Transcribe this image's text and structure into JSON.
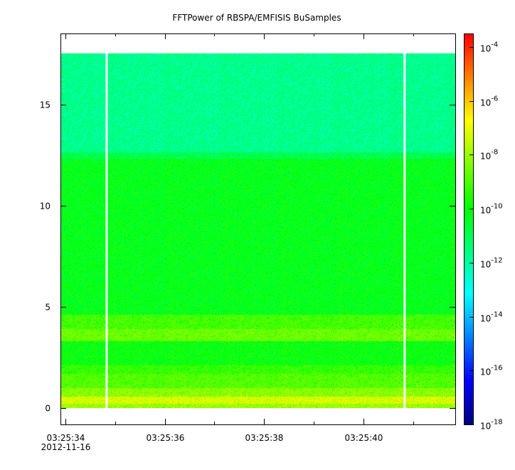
{
  "chart_data": {
    "type": "heatmap",
    "title": "FFTPower of RBSPA/EMFISIS  BuSamples",
    "xlabel": "",
    "ylabel": "",
    "x_range_seconds_after_032534": [
      -0.1,
      7.85
    ],
    "ylim": [
      -0.8,
      18.5
    ],
    "y_ticks": [
      {
        "value": 0,
        "label": "0"
      },
      {
        "value": 5,
        "label": "5"
      },
      {
        "value": 10,
        "label": "10"
      },
      {
        "value": 15,
        "label": "15"
      }
    ],
    "x_ticks": [
      {
        "time": "03:25:34",
        "label": "03:25:34",
        "sub": "2012-11-16"
      },
      {
        "time": "03:25:36",
        "label": "03:25:36"
      },
      {
        "time": "03:25:38",
        "label": "03:25:38"
      },
      {
        "time": "03:25:40",
        "label": "03:25:40"
      }
    ],
    "x_minor_ticks": [
      "03:25:35",
      "03:25:37",
      "03:25:39",
      "03:25:41"
    ],
    "data_extent": {
      "x": [
        "03:25:33.9",
        "03:25:41.85"
      ],
      "y": [
        0,
        17.5
      ]
    },
    "gaps": [
      "03:25:34.83",
      "03:25:40.83"
    ],
    "bands": [
      {
        "y": [
          0.0,
          0.2
        ],
        "log10_power": -8.0
      },
      {
        "y": [
          0.2,
          0.55
        ],
        "log10_power": -7.2
      },
      {
        "y": [
          0.55,
          1.0
        ],
        "log10_power": -8.2
      },
      {
        "y": [
          1.0,
          1.7
        ],
        "log10_power": -8.9
      },
      {
        "y": [
          1.7,
          2.1
        ],
        "log10_power": -9.3
      },
      {
        "y": [
          2.1,
          3.3
        ],
        "log10_power": -10.0
      },
      {
        "y": [
          3.3,
          3.9
        ],
        "log10_power": -8.6
      },
      {
        "y": [
          3.9,
          4.6
        ],
        "log10_power": -9.1
      },
      {
        "y": [
          4.6,
          12.3
        ],
        "log10_power": -10.2
      },
      {
        "y": [
          12.3,
          12.6
        ],
        "log10_power": -10.9
      },
      {
        "y": [
          12.6,
          17.5
        ],
        "log10_power": -11.7
      }
    ],
    "colorbar": {
      "scale": "log",
      "range_log10": [
        -18,
        -3.5
      ],
      "ticks": [
        {
          "exp": -4,
          "base": "10",
          "sup": "-4"
        },
        {
          "exp": -6,
          "base": "10",
          "sup": "-6"
        },
        {
          "exp": -8,
          "base": "10",
          "sup": "-8"
        },
        {
          "exp": -10,
          "base": "10",
          "sup": "-10"
        },
        {
          "exp": -12,
          "base": "10",
          "sup": "-12"
        },
        {
          "exp": -14,
          "base": "10",
          "sup": "-14"
        },
        {
          "exp": -16,
          "base": "10",
          "sup": "-16"
        },
        {
          "exp": -18,
          "base": "10",
          "sup": "-18"
        }
      ],
      "colors": [
        "#000080",
        "#0000ff",
        "#0080ff",
        "#00ffff",
        "#00ff80",
        "#00ff00",
        "#80ff00",
        "#ffff00",
        "#ff8000",
        "#ff0000"
      ]
    }
  }
}
